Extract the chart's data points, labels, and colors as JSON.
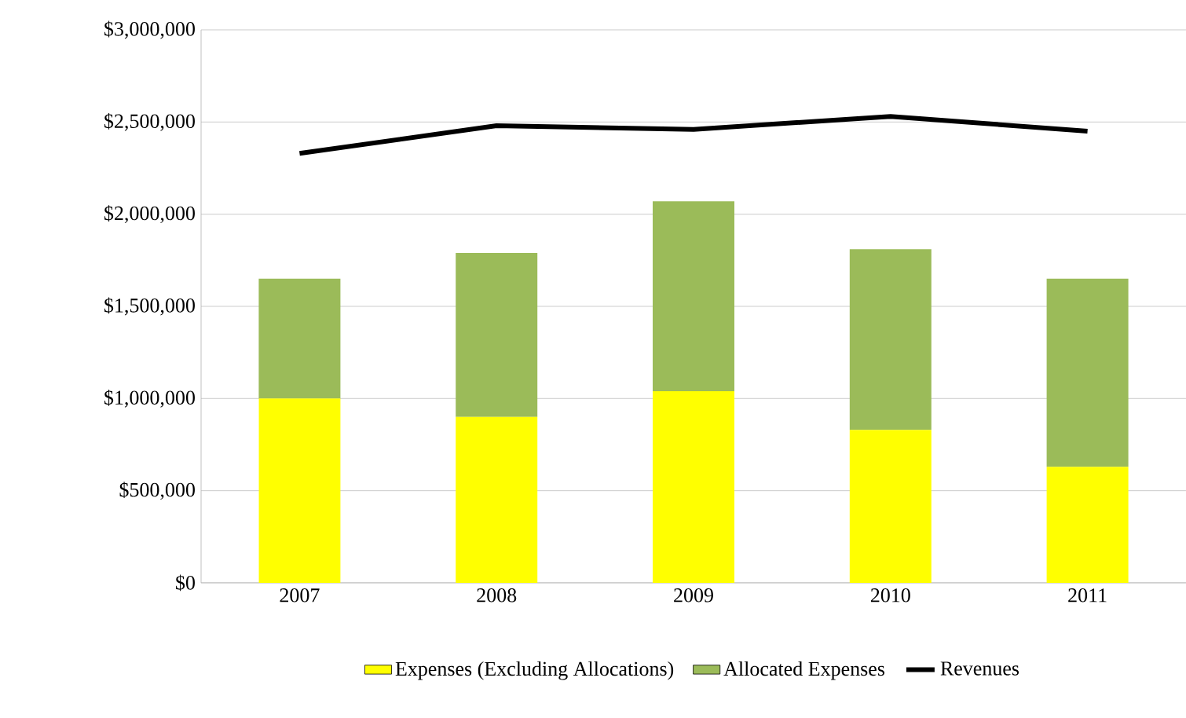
{
  "chart_data": {
    "type": "bar",
    "stacked": true,
    "categories": [
      "2007",
      "2008",
      "2009",
      "2010",
      "2011"
    ],
    "series": [
      {
        "name": "Expenses (Excluding Allocations)",
        "color": "#ffff00",
        "values": [
          1000000,
          900000,
          1040000,
          830000,
          630000
        ]
      },
      {
        "name": "Allocated Expenses",
        "color": "#9bbb59",
        "values": [
          650000,
          890000,
          1030000,
          980000,
          1020000
        ]
      },
      {
        "name": "Revenues",
        "type": "line",
        "color": "#000000",
        "values": [
          2330000,
          2480000,
          2460000,
          2530000,
          2450000
        ]
      }
    ],
    "ylim": [
      0,
      3000000
    ],
    "yticks": [
      {
        "value": 0,
        "label": "$0"
      },
      {
        "value": 500000,
        "label": "$500,000"
      },
      {
        "value": 1000000,
        "label": "$1,000,000"
      },
      {
        "value": 1500000,
        "label": "$1,500,000"
      },
      {
        "value": 2000000,
        "label": "$2,000,000"
      },
      {
        "value": 2500000,
        "label": "$2,500,000"
      },
      {
        "value": 3000000,
        "label": "$3,000,000"
      }
    ],
    "grid": "y",
    "legend": "bottom",
    "marker": "none"
  }
}
